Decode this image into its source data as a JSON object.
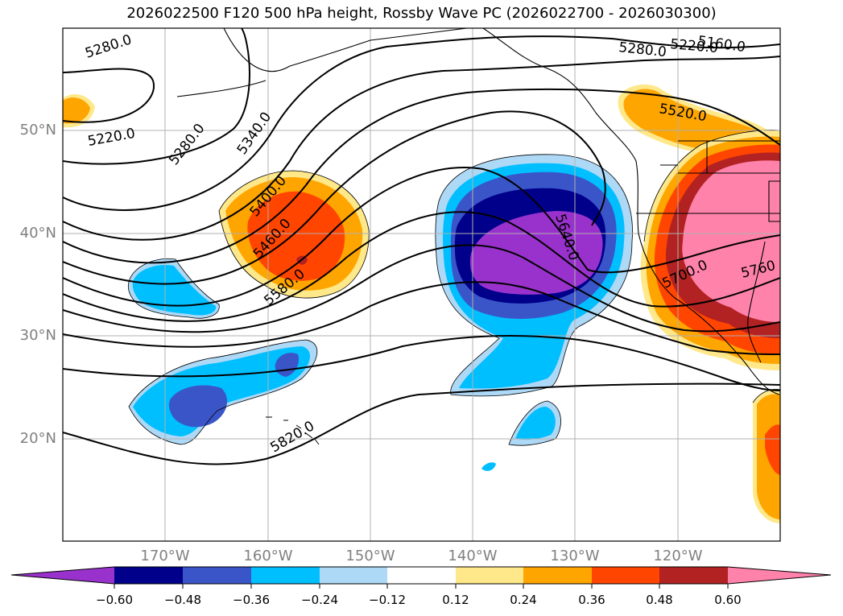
{
  "title": "2026022500 F120 500 hPa height, Rossby Wave PC (2026022700 - 2026030300)",
  "lat_labels": [
    "50°N",
    "40°N",
    "30°N",
    "20°N"
  ],
  "lon_labels": [
    "170°W",
    "160°W",
    "150°W",
    "140°W",
    "130°W",
    "120°W"
  ],
  "contour_labels": [
    "5160.0",
    "5220.0",
    "5280.0",
    "5280.0",
    "5220.0",
    "5280.0",
    "5340.0",
    "5400.0",
    "5460.0",
    "5520.0",
    "5580.0",
    "5640.0",
    "5700.0",
    "5760",
    "5820.0"
  ],
  "colorbar": {
    "ticks": [
      "−0.60",
      "−0.48",
      "−0.36",
      "−0.24",
      "−0.12",
      "0.12",
      "0.24",
      "0.36",
      "0.48",
      "0.60"
    ],
    "colors": [
      "#9932cc",
      "#00008b",
      "#3a55c8",
      "#00bfff",
      "#add8f6",
      "#ffffff",
      "#ffe88a",
      "#ffa500",
      "#ff4500",
      "#b22222",
      "#ff82ab"
    ]
  },
  "palette": {
    "neg_purple": "#9932cc",
    "neg_navy": "#00008b",
    "neg_blue": "#3a55c8",
    "neg_sky": "#00bfff",
    "neg_light": "#add8f6",
    "pos_yellow": "#ffe88a",
    "pos_orange": "#ffa500",
    "pos_red": "#ff4500",
    "pos_brick": "#b22222",
    "pos_pink": "#ff82ab"
  }
}
